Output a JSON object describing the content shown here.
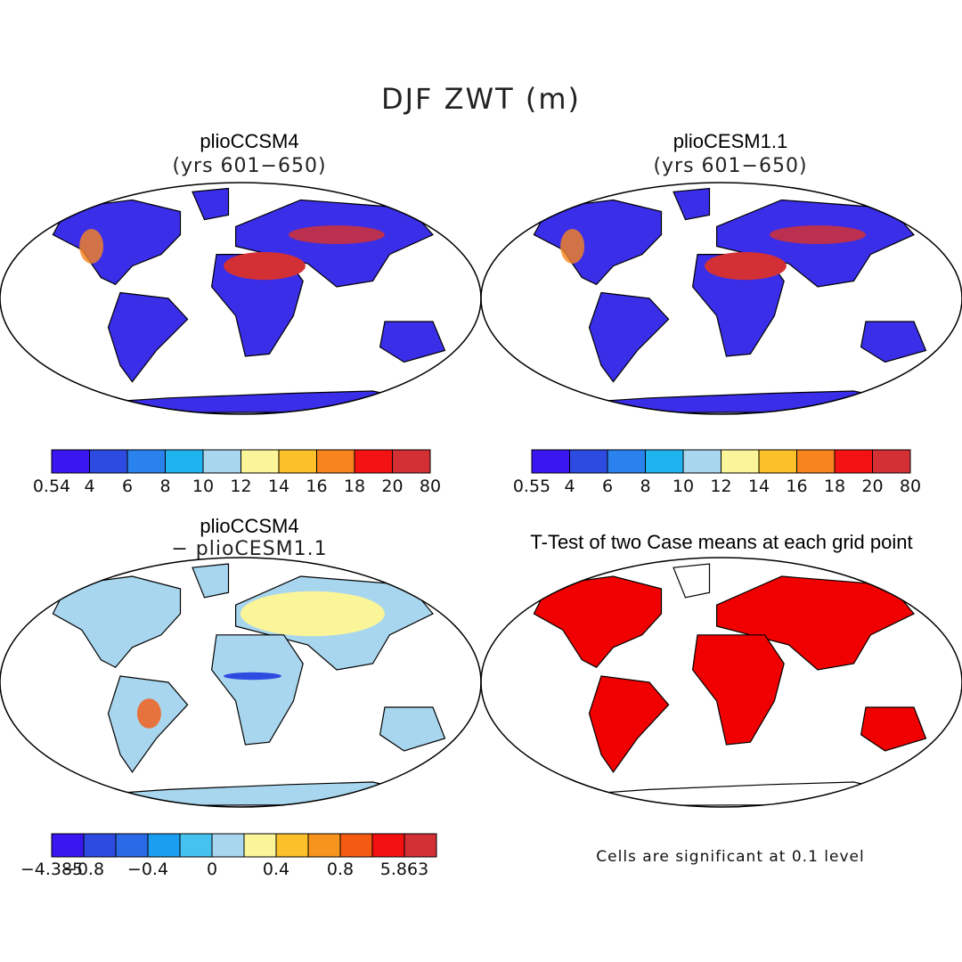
{
  "figure_title": "DJF ZWT (m)",
  "panels": [
    {
      "title": "plioCCSM4",
      "subtitle": "(yrs 601−650)"
    },
    {
      "title": "plioCESM1.1",
      "subtitle": "(yrs 601−650)"
    },
    {
      "title": "plioCCSM4",
      "subtitle": "− plioCESM1.1"
    },
    {
      "title": "T-Test of two Case means at each grid point",
      "subtitle": ""
    }
  ],
  "colorbars": [
    {
      "labels": [
        "0.54",
        "4",
        "6",
        "8",
        "10",
        "12",
        "14",
        "16",
        "18",
        "20",
        "80"
      ],
      "colors": [
        "#3a16f0",
        "#2d4be0",
        "#2a82ee",
        "#1fb3ef",
        "#a8d6ee",
        "#fbf59a",
        "#fbc02a",
        "#f7841e",
        "#f51212",
        "#d23034"
      ]
    },
    {
      "labels": [
        "0.55",
        "4",
        "6",
        "8",
        "10",
        "12",
        "14",
        "16",
        "18",
        "20",
        "80"
      ],
      "colors": [
        "#3a16f0",
        "#2d4be0",
        "#2a82ee",
        "#1fb3ef",
        "#a8d6ee",
        "#fbf59a",
        "#fbc02a",
        "#f7841e",
        "#f51212",
        "#d23034"
      ]
    },
    {
      "labels": [
        "−4.385",
        "−0.8",
        "",
        "−0.4",
        "",
        "0",
        "",
        "0.4",
        "",
        "0.8",
        "",
        "5.863"
      ],
      "colors": [
        "#3a16f0",
        "#2d4be0",
        "#2a6ae6",
        "#1b9ef0",
        "#46c2f0",
        "#a8d6ee",
        "#fbf59a",
        "#fbc02a",
        "#f7941e",
        "#f55a12",
        "#f21010",
        "#d23034"
      ]
    }
  ],
  "note": "Cells are significant at 0.1 level",
  "colors": {
    "land_dry": "#3a2ee8",
    "desert": "#d23034",
    "significant": "#f00000",
    "diff_base": "#a8d6ee"
  }
}
